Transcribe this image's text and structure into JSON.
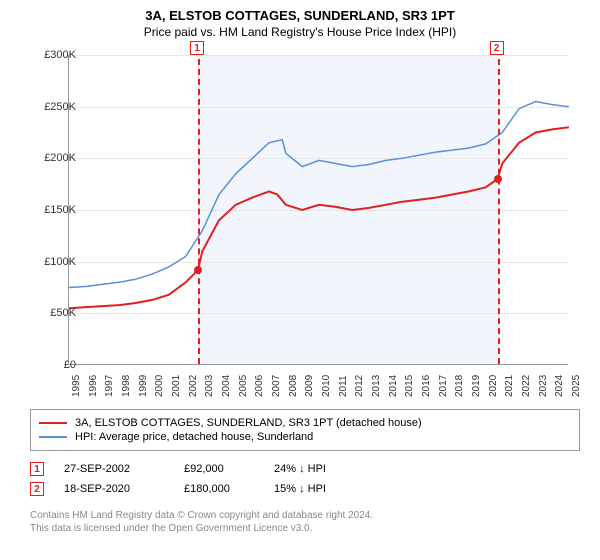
{
  "title": "3A, ELSTOB COTTAGES, SUNDERLAND, SR3 1PT",
  "subtitle": "Price paid vs. HM Land Registry's House Price Index (HPI)",
  "chart": {
    "type": "line",
    "ylim": [
      0,
      300000
    ],
    "ytick_step": 50000,
    "yticks": [
      "£0",
      "£50K",
      "£100K",
      "£150K",
      "£200K",
      "£250K",
      "£300K"
    ],
    "xlim": [
      1995,
      2025
    ],
    "xticks": [
      "1995",
      "1996",
      "1997",
      "1998",
      "1999",
      "2000",
      "2001",
      "2002",
      "2003",
      "2004",
      "2005",
      "2006",
      "2007",
      "2008",
      "2009",
      "2010",
      "2011",
      "2012",
      "2013",
      "2014",
      "2015",
      "2016",
      "2017",
      "2018",
      "2019",
      "2020",
      "2021",
      "2022",
      "2023",
      "2024",
      "2025"
    ],
    "background_color": "#ffffff",
    "grid_color": "#e8e8e8",
    "shaded_region": {
      "from_year": 2002.74,
      "to_year": 2020.71,
      "color": "#f2f6fc"
    },
    "markers": [
      {
        "label": "1",
        "year": 2002.74,
        "box_top": -14
      },
      {
        "label": "2",
        "year": 2020.71,
        "box_top": -14
      }
    ],
    "dots": [
      {
        "year": 2002.74,
        "value": 92000
      },
      {
        "year": 2020.71,
        "value": 180000
      }
    ],
    "series": [
      {
        "name": "price_paid",
        "color": "#e02020",
        "width": 2,
        "points": [
          [
            1995,
            55000
          ],
          [
            1996,
            56000
          ],
          [
            1997,
            57000
          ],
          [
            1998,
            58000
          ],
          [
            1999,
            60000
          ],
          [
            2000,
            63000
          ],
          [
            2001,
            68000
          ],
          [
            2002,
            80000
          ],
          [
            2002.74,
            92000
          ],
          [
            2003,
            110000
          ],
          [
            2004,
            140000
          ],
          [
            2005,
            155000
          ],
          [
            2006,
            162000
          ],
          [
            2007,
            168000
          ],
          [
            2007.5,
            165000
          ],
          [
            2008,
            155000
          ],
          [
            2009,
            150000
          ],
          [
            2010,
            155000
          ],
          [
            2011,
            153000
          ],
          [
            2012,
            150000
          ],
          [
            2013,
            152000
          ],
          [
            2014,
            155000
          ],
          [
            2015,
            158000
          ],
          [
            2016,
            160000
          ],
          [
            2017,
            162000
          ],
          [
            2018,
            165000
          ],
          [
            2019,
            168000
          ],
          [
            2020,
            172000
          ],
          [
            2020.71,
            180000
          ],
          [
            2021,
            195000
          ],
          [
            2022,
            215000
          ],
          [
            2023,
            225000
          ],
          [
            2024,
            228000
          ],
          [
            2025,
            230000
          ]
        ]
      },
      {
        "name": "hpi",
        "color": "#5b8fd6",
        "width": 1.5,
        "points": [
          [
            1995,
            75000
          ],
          [
            1996,
            76000
          ],
          [
            1997,
            78000
          ],
          [
            1998,
            80000
          ],
          [
            1999,
            83000
          ],
          [
            2000,
            88000
          ],
          [
            2001,
            95000
          ],
          [
            2002,
            105000
          ],
          [
            2003,
            130000
          ],
          [
            2004,
            165000
          ],
          [
            2005,
            185000
          ],
          [
            2006,
            200000
          ],
          [
            2007,
            215000
          ],
          [
            2007.8,
            218000
          ],
          [
            2008,
            205000
          ],
          [
            2009,
            192000
          ],
          [
            2010,
            198000
          ],
          [
            2011,
            195000
          ],
          [
            2012,
            192000
          ],
          [
            2013,
            194000
          ],
          [
            2014,
            198000
          ],
          [
            2015,
            200000
          ],
          [
            2016,
            203000
          ],
          [
            2017,
            206000
          ],
          [
            2018,
            208000
          ],
          [
            2019,
            210000
          ],
          [
            2020,
            214000
          ],
          [
            2021,
            225000
          ],
          [
            2022,
            248000
          ],
          [
            2023,
            255000
          ],
          [
            2024,
            252000
          ],
          [
            2025,
            250000
          ]
        ]
      }
    ]
  },
  "legend": {
    "rows": [
      {
        "color": "#e02020",
        "label": "3A, ELSTOB COTTAGES, SUNDERLAND, SR3 1PT (detached house)"
      },
      {
        "color": "#5b8fd6",
        "label": "HPI: Average price, detached house, Sunderland"
      }
    ]
  },
  "events": [
    {
      "num": "1",
      "date": "27-SEP-2002",
      "price": "£92,000",
      "delta": "24% ↓ HPI"
    },
    {
      "num": "2",
      "date": "18-SEP-2020",
      "price": "£180,000",
      "delta": "15% ↓ HPI"
    }
  ],
  "footer": {
    "line1": "Contains HM Land Registry data © Crown copyright and database right 2024.",
    "line2": "This data is licensed under the Open Government Licence v3.0."
  }
}
